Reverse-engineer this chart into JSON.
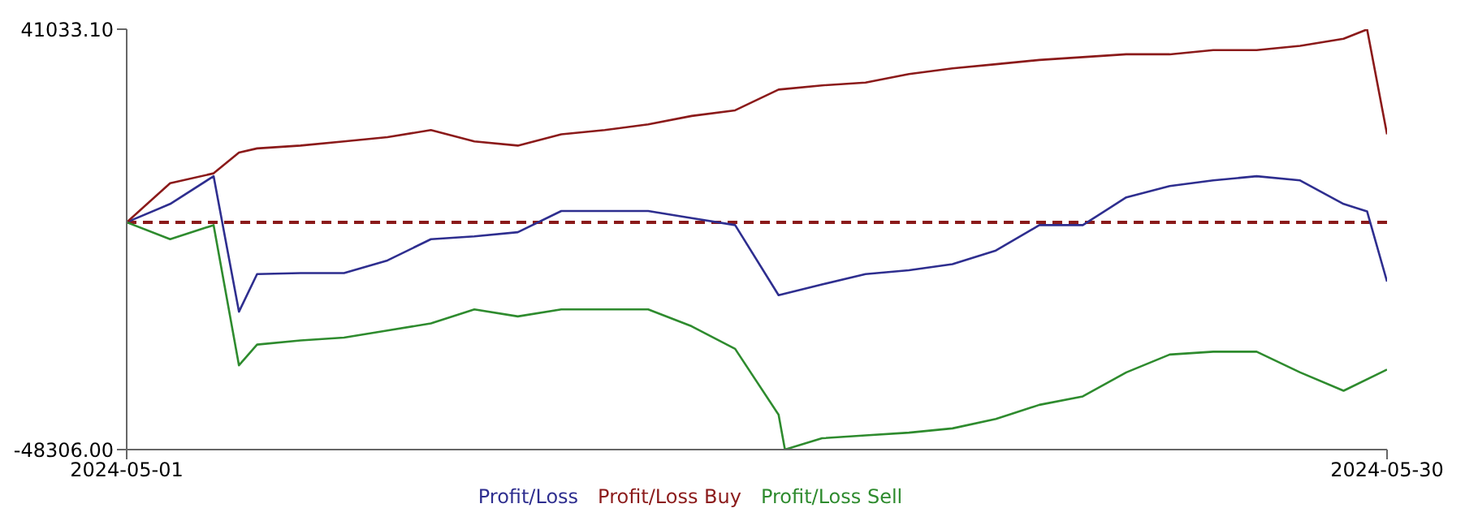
{
  "chart_data": {
    "type": "line",
    "xlim": [
      "2024-05-01",
      "2024-05-30"
    ],
    "xticks": [
      "2024-05-01",
      "2024-05-30"
    ],
    "ylim": [
      -48306,
      41033.1
    ],
    "yticks": [
      {
        "value": 41033.1,
        "label": "41033.10"
      },
      {
        "value": -48306,
        "label": "-48306.00"
      }
    ],
    "series": [
      {
        "name": "Profit/Loss",
        "color": "#2e2e8f",
        "x": [
          "2024-05-01",
          "2024-05-02",
          "2024-05-03",
          "2024-05-03T14:00",
          "2024-05-04",
          "2024-05-05",
          "2024-05-06",
          "2024-05-07",
          "2024-05-08",
          "2024-05-09",
          "2024-05-10",
          "2024-05-11",
          "2024-05-12",
          "2024-05-13",
          "2024-05-14",
          "2024-05-15",
          "2024-05-16",
          "2024-05-17",
          "2024-05-18",
          "2024-05-19",
          "2024-05-20",
          "2024-05-21",
          "2024-05-22",
          "2024-05-23",
          "2024-05-24",
          "2024-05-25",
          "2024-05-26",
          "2024-05-27",
          "2024-05-28",
          "2024-05-29",
          "2024-05-29T13:00",
          "2024-05-30"
        ],
        "values": [
          0,
          3900,
          9800,
          -19000,
          -11000,
          -10800,
          -10800,
          -8100,
          -3600,
          -3000,
          -2100,
          2400,
          2400,
          2400,
          900,
          -600,
          -15500,
          -13200,
          -11000,
          -10200,
          -8900,
          -6000,
          -600,
          -600,
          5300,
          7700,
          8900,
          9800,
          8900,
          3900,
          2300,
          -12600
        ]
      },
      {
        "name": "Profit/Loss Buy",
        "color": "#8b1a1a",
        "x": [
          "2024-05-01",
          "2024-05-02",
          "2024-05-03",
          "2024-05-03T14:00",
          "2024-05-04",
          "2024-05-05",
          "2024-05-06",
          "2024-05-07",
          "2024-05-08",
          "2024-05-09",
          "2024-05-10",
          "2024-05-11",
          "2024-05-12",
          "2024-05-13",
          "2024-05-14",
          "2024-05-15",
          "2024-05-16",
          "2024-05-17",
          "2024-05-18",
          "2024-05-19",
          "2024-05-20",
          "2024-05-21",
          "2024-05-22",
          "2024-05-23",
          "2024-05-24",
          "2024-05-25",
          "2024-05-26",
          "2024-05-27",
          "2024-05-28",
          "2024-05-29",
          "2024-05-29T13:00",
          "2024-05-30"
        ],
        "values": [
          0,
          8300,
          10400,
          14800,
          15700,
          16300,
          17200,
          18100,
          19600,
          17200,
          16300,
          18700,
          19600,
          20800,
          22600,
          23800,
          28200,
          29100,
          29700,
          31500,
          32700,
          33600,
          34500,
          35100,
          35700,
          35700,
          36600,
          36600,
          37500,
          39000,
          41000,
          18700
        ]
      },
      {
        "name": "Profit/Loss Sell",
        "color": "#2e8b2e",
        "x": [
          "2024-05-01",
          "2024-05-02",
          "2024-05-03",
          "2024-05-03T14:00",
          "2024-05-04",
          "2024-05-05",
          "2024-05-06",
          "2024-05-07",
          "2024-05-08",
          "2024-05-09",
          "2024-05-10",
          "2024-05-11",
          "2024-05-12",
          "2024-05-13",
          "2024-05-14",
          "2024-05-15",
          "2024-05-16",
          "2024-05-16T03:30",
          "2024-05-17",
          "2024-05-18",
          "2024-05-19",
          "2024-05-20",
          "2024-05-21",
          "2024-05-22",
          "2024-05-23",
          "2024-05-24",
          "2024-05-25",
          "2024-05-26",
          "2024-05-27",
          "2024-05-28",
          "2024-05-29",
          "2024-05-30"
        ],
        "values": [
          0,
          -3600,
          -600,
          -30400,
          -26000,
          -25100,
          -24500,
          -23000,
          -21500,
          -18500,
          -20000,
          -18500,
          -18500,
          -18500,
          -22100,
          -26900,
          -40900,
          -48300,
          -45900,
          -45300,
          -44700,
          -43800,
          -41800,
          -38800,
          -37000,
          -31900,
          -28100,
          -27500,
          -27500,
          -31900,
          -35800,
          -31300
        ]
      }
    ],
    "ref_lines": [
      {
        "axis": "y",
        "value": 0,
        "color": "#8b1a1a",
        "line_style": "dashed"
      }
    ],
    "legend": "bottom",
    "marker": "none",
    "line_style": "solid",
    "grid": false
  }
}
